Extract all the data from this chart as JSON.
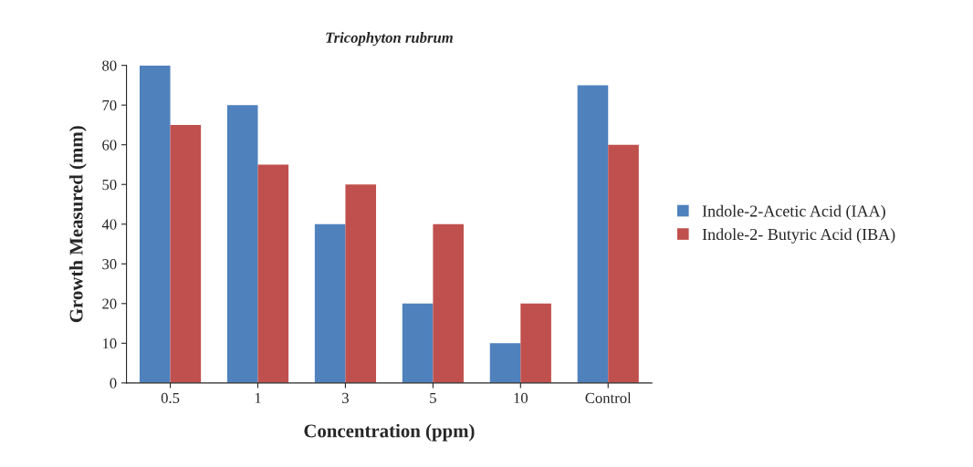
{
  "chart_data": {
    "type": "bar",
    "title": "Tricophyton rubrum",
    "xlabel": "Concentration (ppm)",
    "ylabel": "Growth Measured (mm)",
    "categories": [
      "0.5",
      "1",
      "3",
      "5",
      "10",
      "Control"
    ],
    "series": [
      {
        "name": "Indole-2-Acetic Acid (IAA)",
        "color": "#4f81bd",
        "values": [
          80,
          70,
          40,
          20,
          10,
          75
        ]
      },
      {
        "name": "Indole-2- Butyric Acid (IBA)",
        "color": "#c0504d",
        "values": [
          65,
          55,
          50,
          40,
          20,
          60
        ]
      }
    ],
    "ylim": [
      0,
      80
    ],
    "yticks": [
      0,
      10,
      20,
      30,
      40,
      50,
      60,
      70,
      80
    ],
    "grid": false,
    "legend": "right"
  }
}
